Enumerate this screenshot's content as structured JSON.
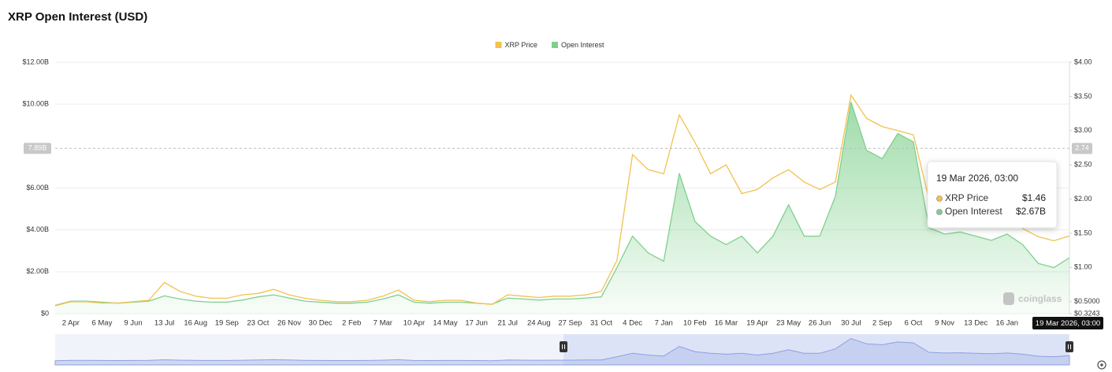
{
  "chart_data": {
    "type": "line",
    "title": "XRP Open Interest (USD)",
    "categories": [
      null,
      "2 Apr",
      null,
      "6 May",
      null,
      "9 Jun",
      null,
      "13 Jul",
      null,
      "16 Aug",
      null,
      "19 Sep",
      null,
      "23 Oct",
      null,
      "26 Nov",
      null,
      "30 Dec",
      null,
      "2 Feb",
      null,
      "7 Mar",
      null,
      "10 Apr",
      null,
      "14 May",
      null,
      "17 Jun",
      null,
      "21 Jul",
      null,
      "24 Aug",
      null,
      "27 Sep",
      null,
      "31 Oct",
      null,
      "4 Dec",
      null,
      "7 Jan",
      null,
      "10 Feb",
      null,
      "16 Mar",
      null,
      "19 Apr",
      null,
      "23 May",
      null,
      "26 Jun",
      null,
      "30 Jul",
      null,
      "2 Sep",
      null,
      "6 Oct",
      null,
      "9 Nov",
      null,
      "13 Dec",
      null,
      "16 Jan",
      null,
      null,
      null,
      "19 Mar 2026, 03:00"
    ],
    "series": [
      {
        "name": "XRP Price",
        "color": "#f2c14e",
        "axis": "y2",
        "values": [
          0.44,
          0.5,
          0.5,
          0.48,
          0.48,
          0.5,
          0.52,
          0.78,
          0.65,
          0.58,
          0.55,
          0.55,
          0.6,
          0.62,
          0.68,
          0.6,
          0.55,
          0.52,
          0.5,
          0.5,
          0.52,
          0.58,
          0.67,
          0.52,
          0.5,
          0.52,
          0.52,
          0.48,
          0.46,
          0.6,
          0.58,
          0.56,
          0.58,
          0.58,
          0.6,
          0.65,
          1.1,
          2.65,
          2.43,
          2.37,
          3.23,
          2.83,
          2.37,
          2.5,
          2.08,
          2.14,
          2.31,
          2.43,
          2.25,
          2.14,
          2.25,
          3.52,
          3.18,
          3.06,
          3.0,
          2.94,
          2.0,
          1.95,
          1.9,
          1.85,
          1.8,
          1.85,
          1.57,
          1.45,
          1.39,
          1.46
        ]
      },
      {
        "name": "Open Interest",
        "color": "#7fd08c",
        "values": [
          0.4,
          0.6,
          0.6,
          0.55,
          0.5,
          0.55,
          0.6,
          0.85,
          0.7,
          0.6,
          0.55,
          0.55,
          0.65,
          0.8,
          0.9,
          0.75,
          0.6,
          0.55,
          0.5,
          0.5,
          0.55,
          0.7,
          0.9,
          0.55,
          0.5,
          0.55,
          0.55,
          0.5,
          0.45,
          0.75,
          0.7,
          0.65,
          0.7,
          0.7,
          0.75,
          0.8,
          2.2,
          3.7,
          2.9,
          2.5,
          6.7,
          4.4,
          3.7,
          3.3,
          3.7,
          2.9,
          3.7,
          5.2,
          3.7,
          3.7,
          5.6,
          10.1,
          7.8,
          7.4,
          8.6,
          8.2,
          4.1,
          3.8,
          3.9,
          3.7,
          3.5,
          3.8,
          3.3,
          2.4,
          2.2,
          2.67
        ]
      }
    ],
    "ylim": [
      0,
      12
    ],
    "yticks": [
      {
        "value": 0,
        "label": "$0"
      },
      {
        "value": 2,
        "label": "$2.00B"
      },
      {
        "value": 4,
        "label": "$4.00B"
      },
      {
        "value": 6,
        "label": "$6.00B"
      },
      {
        "value": 10,
        "label": "$10.00B"
      },
      {
        "value": 12,
        "label": "$12.00B"
      }
    ],
    "y2lim": [
      0.3243,
      4.0
    ],
    "y2ticks": [
      {
        "value": 0.3243,
        "label": "$0.3243"
      },
      {
        "value": 0.5,
        "label": "$0.5000"
      },
      {
        "value": 1,
        "label": "$1.00"
      },
      {
        "value": 1.5,
        "label": "$1.50"
      },
      {
        "value": 2,
        "label": "$2.00"
      },
      {
        "value": 2.5,
        "label": "$2.50"
      },
      {
        "value": 3,
        "label": "$3.00"
      },
      {
        "value": 3.5,
        "label": "$3.50"
      },
      {
        "value": 4,
        "label": "$4.00"
      }
    ],
    "grid": true,
    "legend": "top",
    "crosshair": {
      "y": {
        "value": 7.89,
        "label": "7.89B"
      },
      "y2": {
        "value": 2.74,
        "label": "2.74"
      }
    },
    "tooltip": {
      "value_labels": [
        "$1.46",
        "$2.67B"
      ]
    },
    "watermark": "coinglass"
  }
}
